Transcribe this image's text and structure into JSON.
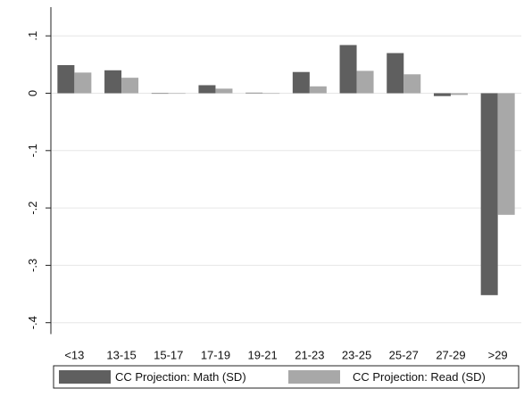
{
  "chart_data": {
    "type": "bar",
    "title": "",
    "xlabel": "",
    "ylabel": "",
    "categories": [
      "<13",
      "13-15",
      "15-17",
      "17-19",
      "19-21",
      "21-23",
      "23-25",
      "25-27",
      "27-29",
      ">29"
    ],
    "series": [
      {
        "name": "CC Projection: Math (SD)",
        "color": "#5f5f5f",
        "values": [
          0.049,
          0.04,
          0.0,
          0.014,
          0.001,
          0.037,
          0.084,
          0.07,
          -0.005,
          -0.352
        ]
      },
      {
        "name": "CC Projection: Read (SD)",
        "color": "#a8a8a8",
        "values": [
          0.036,
          0.027,
          0.0,
          0.008,
          0.0,
          0.012,
          0.039,
          0.033,
          -0.003,
          -0.212
        ]
      }
    ],
    "ylim": [
      -0.42,
      0.12
    ],
    "yticks": [
      0.1,
      0,
      -0.1,
      -0.2,
      -0.3,
      -0.4
    ],
    "ytick_labels": [
      ".1",
      "0",
      "-.1",
      "-.2",
      "-.3",
      "-.4"
    ],
    "grid": true,
    "legend_position": "bottom"
  }
}
